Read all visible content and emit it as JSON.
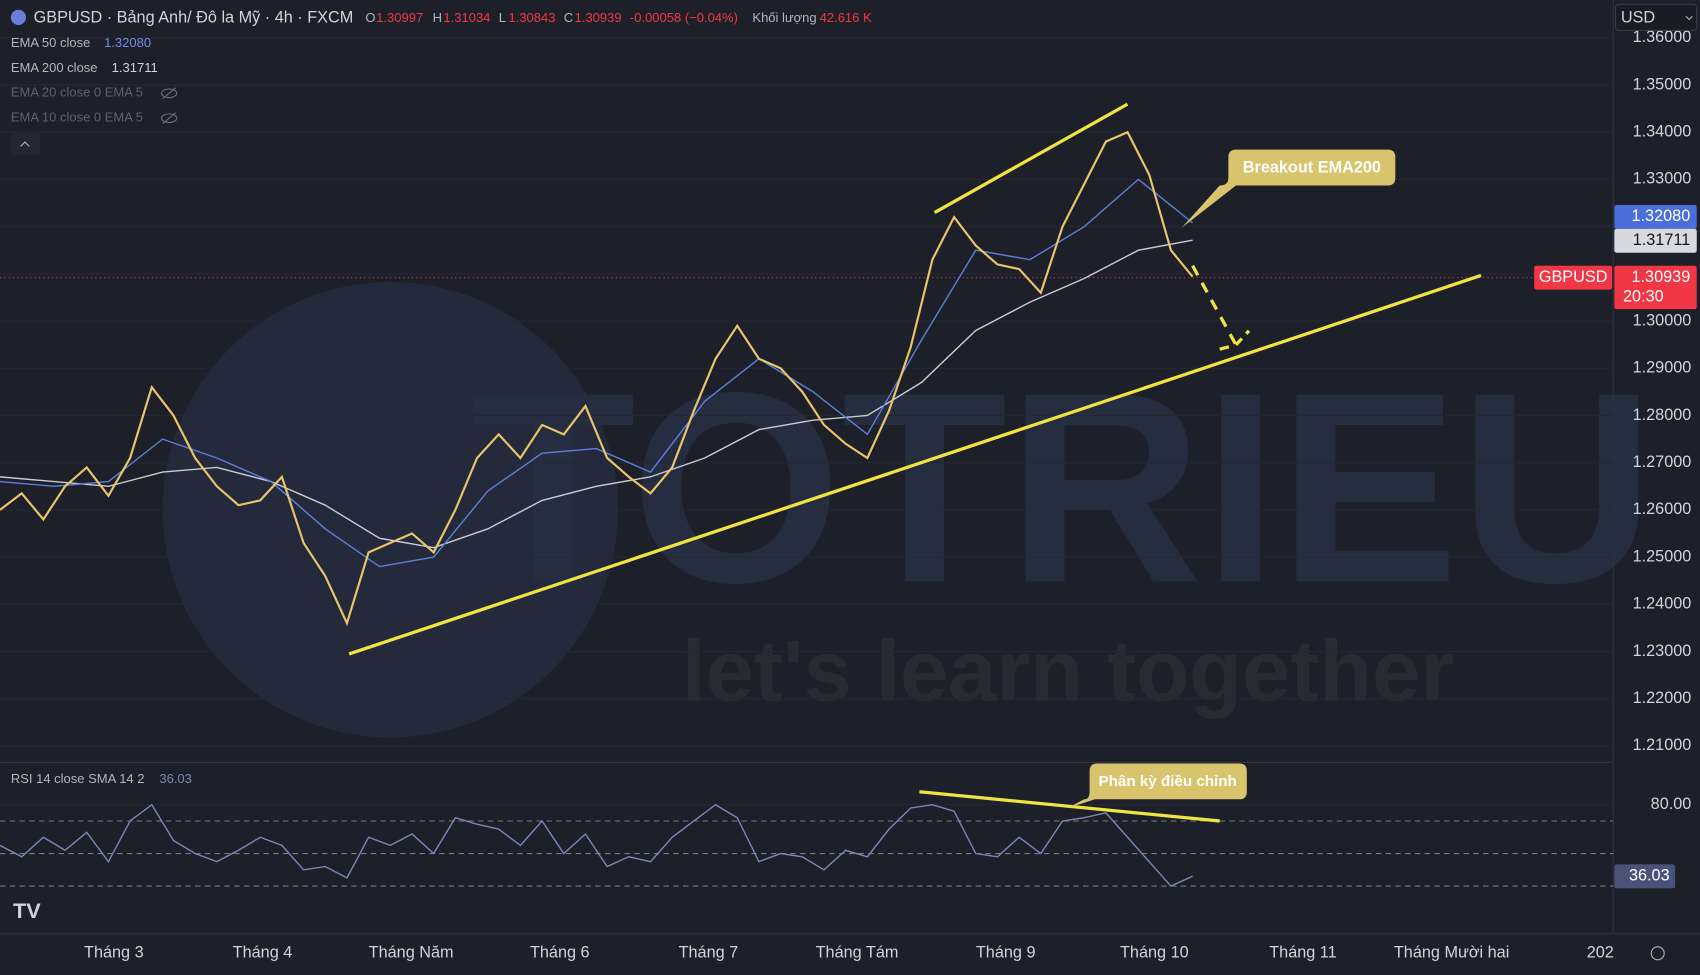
{
  "header": {
    "symbol": "GBPUSD · Bảng Anh/ Đô la Mỹ · 4h · FXCM",
    "ohlc": [
      {
        "key": "O",
        "value": "1.30997"
      },
      {
        "key": "H",
        "value": "1.31034"
      },
      {
        "key": "L",
        "value": "1.30843"
      },
      {
        "key": "C",
        "value": "1.30939"
      }
    ],
    "change": "-0.00058 (−0.04%)",
    "volume_label": "Khối lượng",
    "volume": "42.616 K"
  },
  "indicators": [
    {
      "value": "1.32080"
    },
    {
      "value": "1.31711"
    },
    {
      "name": "EMA 20 close 0 EMA 5"
    },
    {
      "name": "EMA 10 close 0 EMA 5"
    }
  ],
  "currency": "USD",
  "last_price": {
    "value": "1.30939",
    "time": "20:30"
  },
  "annotations": {
    "breakout": "Breakout EMA200",
    "divergence": "Phân kỳ điều chỉnh"
  },
  "watermark": {
    "brand": "TOTRIEU",
    "slogan": "let's learn together"
  },
  "x_labels": [
    "Tháng 3",
    "Tháng 4",
    "Tháng Năm",
    "Tháng 6",
    "Tháng 7",
    "Tháng Tám",
    "Tháng 9",
    "Tháng 10",
    "Tháng 11",
    "Tháng Mười hai",
    "202"
  ],
  "chart_data": [
    {
      "type": "line",
      "ylim": [
        1.2072,
        1.368
      ],
      "yticks": [
        {
          "value": 1.36,
          "label": "1.36000"
        },
        {
          "value": 1.35,
          "label": "1.35000"
        },
        {
          "value": 1.34,
          "label": "1.34000"
        },
        {
          "value": 1.33,
          "label": "1.33000"
        },
        {
          "value": 1.32,
          "label": "1.32000"
        },
        {
          "value": 1.31,
          "label": "1.31000"
        },
        {
          "value": 1.3,
          "label": "1.30000"
        },
        {
          "value": 1.29,
          "label": "1.29000"
        },
        {
          "value": 1.28,
          "label": "1.28000"
        },
        {
          "value": 1.27,
          "label": "1.27000"
        },
        {
          "value": 1.26,
          "label": "1.26000"
        },
        {
          "value": 1.25,
          "label": "1.25000"
        },
        {
          "value": 1.24,
          "label": "1.24000"
        },
        {
          "value": 1.23,
          "label": "1.23000"
        },
        {
          "value": 1.22,
          "label": "1.22000"
        },
        {
          "value": 1.21,
          "label": "1.21000"
        }
      ],
      "series": [
        {
          "name": "GBPUSD",
          "color": "#e9c46a",
          "values": [
            1.26,
            1.2635,
            1.258,
            1.265,
            1.269,
            1.263,
            1.271,
            1.286,
            1.28,
            1.271,
            1.265,
            1.261,
            1.262,
            1.267,
            1.253,
            1.246,
            1.236,
            1.251,
            1.253,
            1.255,
            1.251,
            1.26,
            1.271,
            1.276,
            1.271,
            1.278,
            1.276,
            1.282,
            1.271,
            1.267,
            1.2635,
            1.269,
            1.281,
            1.292,
            1.299,
            1.292,
            1.29,
            1.285,
            1.278,
            1.274,
            1.271,
            1.281,
            1.2945,
            1.313,
            1.322,
            1.316,
            1.312,
            1.311,
            1.306,
            1.32,
            1.329,
            1.338,
            1.34,
            1.331,
            1.315,
            1.30939
          ]
        },
        {
          "name": "EMA 50 close",
          "color": "#5b7fd6",
          "values": [
            1.266,
            1.265,
            1.266,
            1.275,
            1.271,
            1.266,
            1.256,
            1.248,
            1.25,
            1.264,
            1.272,
            1.273,
            1.268,
            1.283,
            1.292,
            1.285,
            1.276,
            1.296,
            1.315,
            1.313,
            1.32,
            1.33,
            1.3208
          ]
        },
        {
          "name": "EMA 200 close",
          "color": "#c9ccd4",
          "values": [
            1.267,
            1.266,
            1.265,
            1.268,
            1.269,
            1.266,
            1.261,
            1.254,
            1.252,
            1.256,
            1.262,
            1.265,
            1.267,
            1.271,
            1.277,
            1.279,
            1.28,
            1.287,
            1.298,
            1.304,
            1.309,
            1.315,
            1.31711
          ]
        }
      ]
    },
    {
      "type": "line",
      "title": "RSI 14 close SMA 14 2",
      "ylim": [
        1.3,
        104.7
      ],
      "yticks": [
        {
          "value": 80,
          "label": "80.00"
        }
      ],
      "levels": [
        70,
        50,
        30
      ],
      "values": [
        55,
        48,
        60,
        52,
        63,
        45,
        70,
        80,
        58,
        50,
        45,
        52,
        60,
        55,
        40,
        42,
        35,
        60,
        55,
        62,
        50,
        72,
        68,
        65,
        55,
        70,
        50,
        62,
        42,
        48,
        45,
        60,
        70,
        80,
        72,
        45,
        50,
        48,
        40,
        52,
        48,
        65,
        78,
        80,
        76,
        50,
        48,
        60,
        50,
        70,
        72,
        75,
        60,
        45,
        30,
        36.03
      ],
      "value_label": "36.03",
      "color": "#7e86b8"
    }
  ]
}
